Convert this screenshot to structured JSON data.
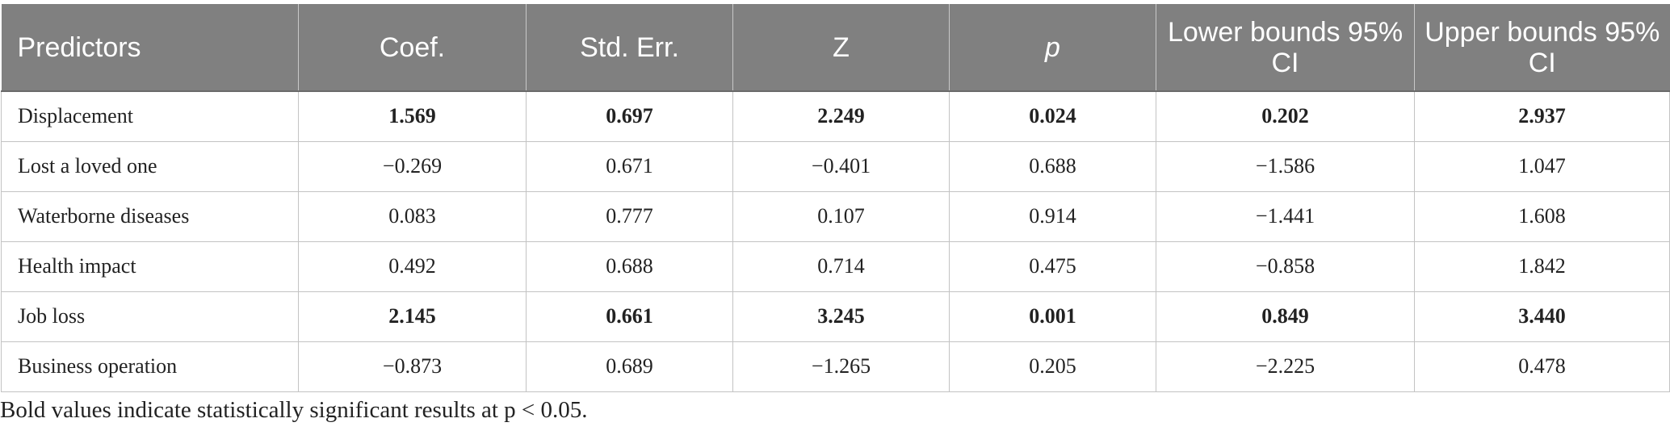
{
  "table": {
    "headers": [
      "Predictors",
      "Coef.",
      "Std. Err.",
      "Z",
      "p",
      "Lower bounds 95% CI",
      "Upper bounds 95% CI"
    ],
    "rows": [
      {
        "label": "Displacement",
        "cells": [
          "1.569",
          "0.697",
          "2.249",
          "0.024",
          "0.202",
          "2.937"
        ],
        "significant": true
      },
      {
        "label": "Lost a loved one",
        "cells": [
          "−0.269",
          "0.671",
          "−0.401",
          "0.688",
          "−1.586",
          "1.047"
        ],
        "significant": false
      },
      {
        "label": "Waterborne diseases",
        "cells": [
          "0.083",
          "0.777",
          "0.107",
          "0.914",
          "−1.441",
          "1.608"
        ],
        "significant": false
      },
      {
        "label": "Health impact",
        "cells": [
          "0.492",
          "0.688",
          "0.714",
          "0.475",
          "−0.858",
          "1.842"
        ],
        "significant": false
      },
      {
        "label": "Job loss",
        "cells": [
          "2.145",
          "0.661",
          "3.245",
          "0.001",
          "0.849",
          "3.440"
        ],
        "significant": true
      },
      {
        "label": "Business operation",
        "cells": [
          "−0.873",
          "0.689",
          "−1.265",
          "0.205",
          "−2.225",
          "0.478"
        ],
        "significant": false
      }
    ]
  },
  "footnote": "Bold values indicate statistically significant results at p < 0.05.",
  "colors": {
    "header_bg": "#808080",
    "header_text": "#ffffff",
    "border": "#c3c3c3"
  }
}
